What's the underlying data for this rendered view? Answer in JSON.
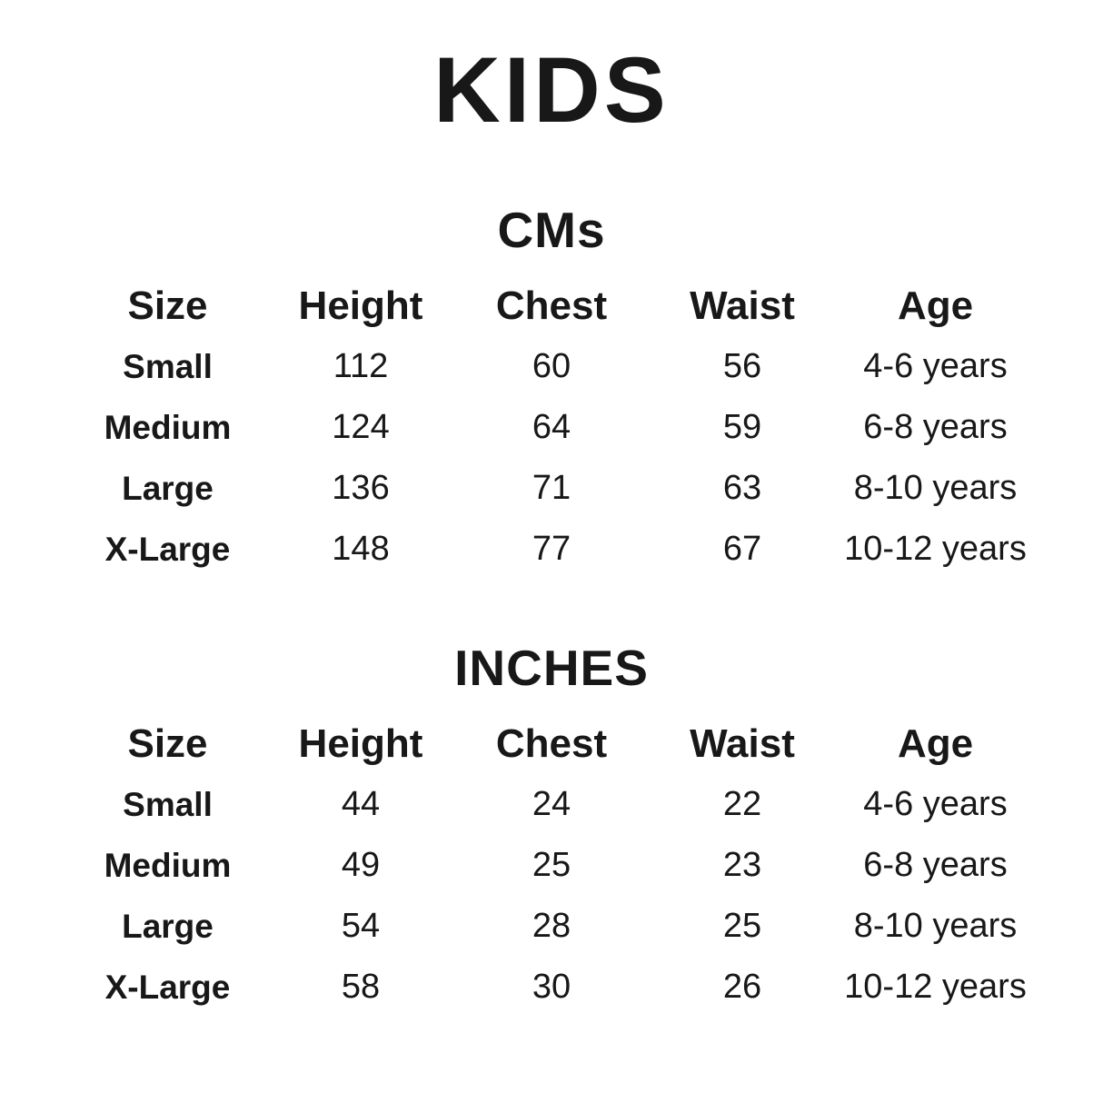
{
  "page": {
    "title": "KIDS"
  },
  "colors": {
    "text": "#181818",
    "background": "#ffffff"
  },
  "sections": [
    {
      "heading": "CMs",
      "columns": [
        "Size",
        "Height",
        "Chest",
        "Waist",
        "Age"
      ],
      "rows": [
        [
          "Small",
          "112",
          "60",
          "56",
          "4-6 years"
        ],
        [
          "Medium",
          "124",
          "64",
          "59",
          "6-8 years"
        ],
        [
          "Large",
          "136",
          "71",
          "63",
          "8-10 years"
        ],
        [
          "X-Large",
          "148",
          "77",
          "67",
          "10-12 years"
        ]
      ]
    },
    {
      "heading": "INCHES",
      "columns": [
        "Size",
        "Height",
        "Chest",
        "Waist",
        "Age"
      ],
      "rows": [
        [
          "Small",
          "44",
          "24",
          "22",
          "4-6 years"
        ],
        [
          "Medium",
          "49",
          "25",
          "23",
          "6-8 years"
        ],
        [
          "Large",
          "54",
          "28",
          "25",
          "8-10 years"
        ],
        [
          "X-Large",
          "58",
          "30",
          "26",
          "10-12 years"
        ]
      ]
    }
  ]
}
